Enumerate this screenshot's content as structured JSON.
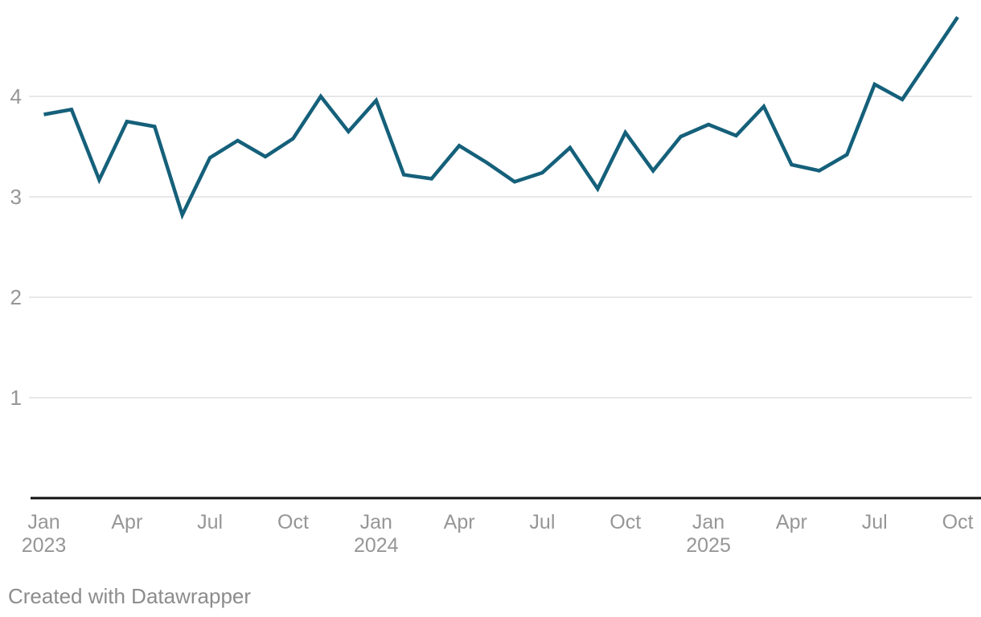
{
  "chart_data": {
    "type": "line",
    "title": "",
    "x": [
      "Jan 2023",
      "Feb 2023",
      "Mar 2023",
      "Apr 2023",
      "May 2023",
      "Jun 2023",
      "Jul 2023",
      "Aug 2023",
      "Sep 2023",
      "Oct 2023",
      "Nov 2023",
      "Dec 2023",
      "Jan 2024",
      "Feb 2024",
      "Mar 2024",
      "Apr 2024",
      "May 2024",
      "Jun 2024",
      "Jul 2024",
      "Aug 2024",
      "Sep 2024",
      "Oct 2024",
      "Nov 2024",
      "Dec 2024",
      "Jan 2025",
      "Feb 2025",
      "Mar 2025",
      "Apr 2025",
      "May 2025",
      "Jun 2025",
      "Jul 2025",
      "Aug 2025",
      "Sep 2025",
      "Oct 2025"
    ],
    "values": [
      3.82,
      3.87,
      3.17,
      3.75,
      3.7,
      2.82,
      3.39,
      3.56,
      3.4,
      3.58,
      4.0,
      3.65,
      3.96,
      3.22,
      3.18,
      3.51,
      3.34,
      3.15,
      3.24,
      3.49,
      3.08,
      3.64,
      3.26,
      3.6,
      3.72,
      3.61,
      3.9,
      3.32,
      3.26,
      3.42,
      4.12,
      3.97,
      4.38,
      4.79
    ],
    "yticks": [
      1,
      2,
      3,
      4
    ],
    "ylim": [
      0,
      4.96
    ],
    "xticks": [
      {
        "i": 0,
        "month": "Jan",
        "year": "2023"
      },
      {
        "i": 3,
        "month": "Apr",
        "year": ""
      },
      {
        "i": 6,
        "month": "Jul",
        "year": ""
      },
      {
        "i": 9,
        "month": "Oct",
        "year": ""
      },
      {
        "i": 12,
        "month": "Jan",
        "year": "2024"
      },
      {
        "i": 15,
        "month": "Apr",
        "year": ""
      },
      {
        "i": 18,
        "month": "Jul",
        "year": ""
      },
      {
        "i": 21,
        "month": "Oct",
        "year": ""
      },
      {
        "i": 24,
        "month": "Jan",
        "year": "2025"
      },
      {
        "i": 27,
        "month": "Apr",
        "year": ""
      },
      {
        "i": 30,
        "month": "Jul",
        "year": ""
      },
      {
        "i": 33,
        "month": "Oct",
        "year": ""
      }
    ],
    "grid": "horizontal",
    "legend": "none",
    "xlabel": "",
    "ylabel": ""
  },
  "colors": {
    "line": "#15607a",
    "grid": "#e8e8e8",
    "axis": "#111111",
    "tick_label": "#969696",
    "credit": "#8c8c8c",
    "background": "#ffffff"
  },
  "footer": {
    "credit": "Created with Datawrapper"
  }
}
